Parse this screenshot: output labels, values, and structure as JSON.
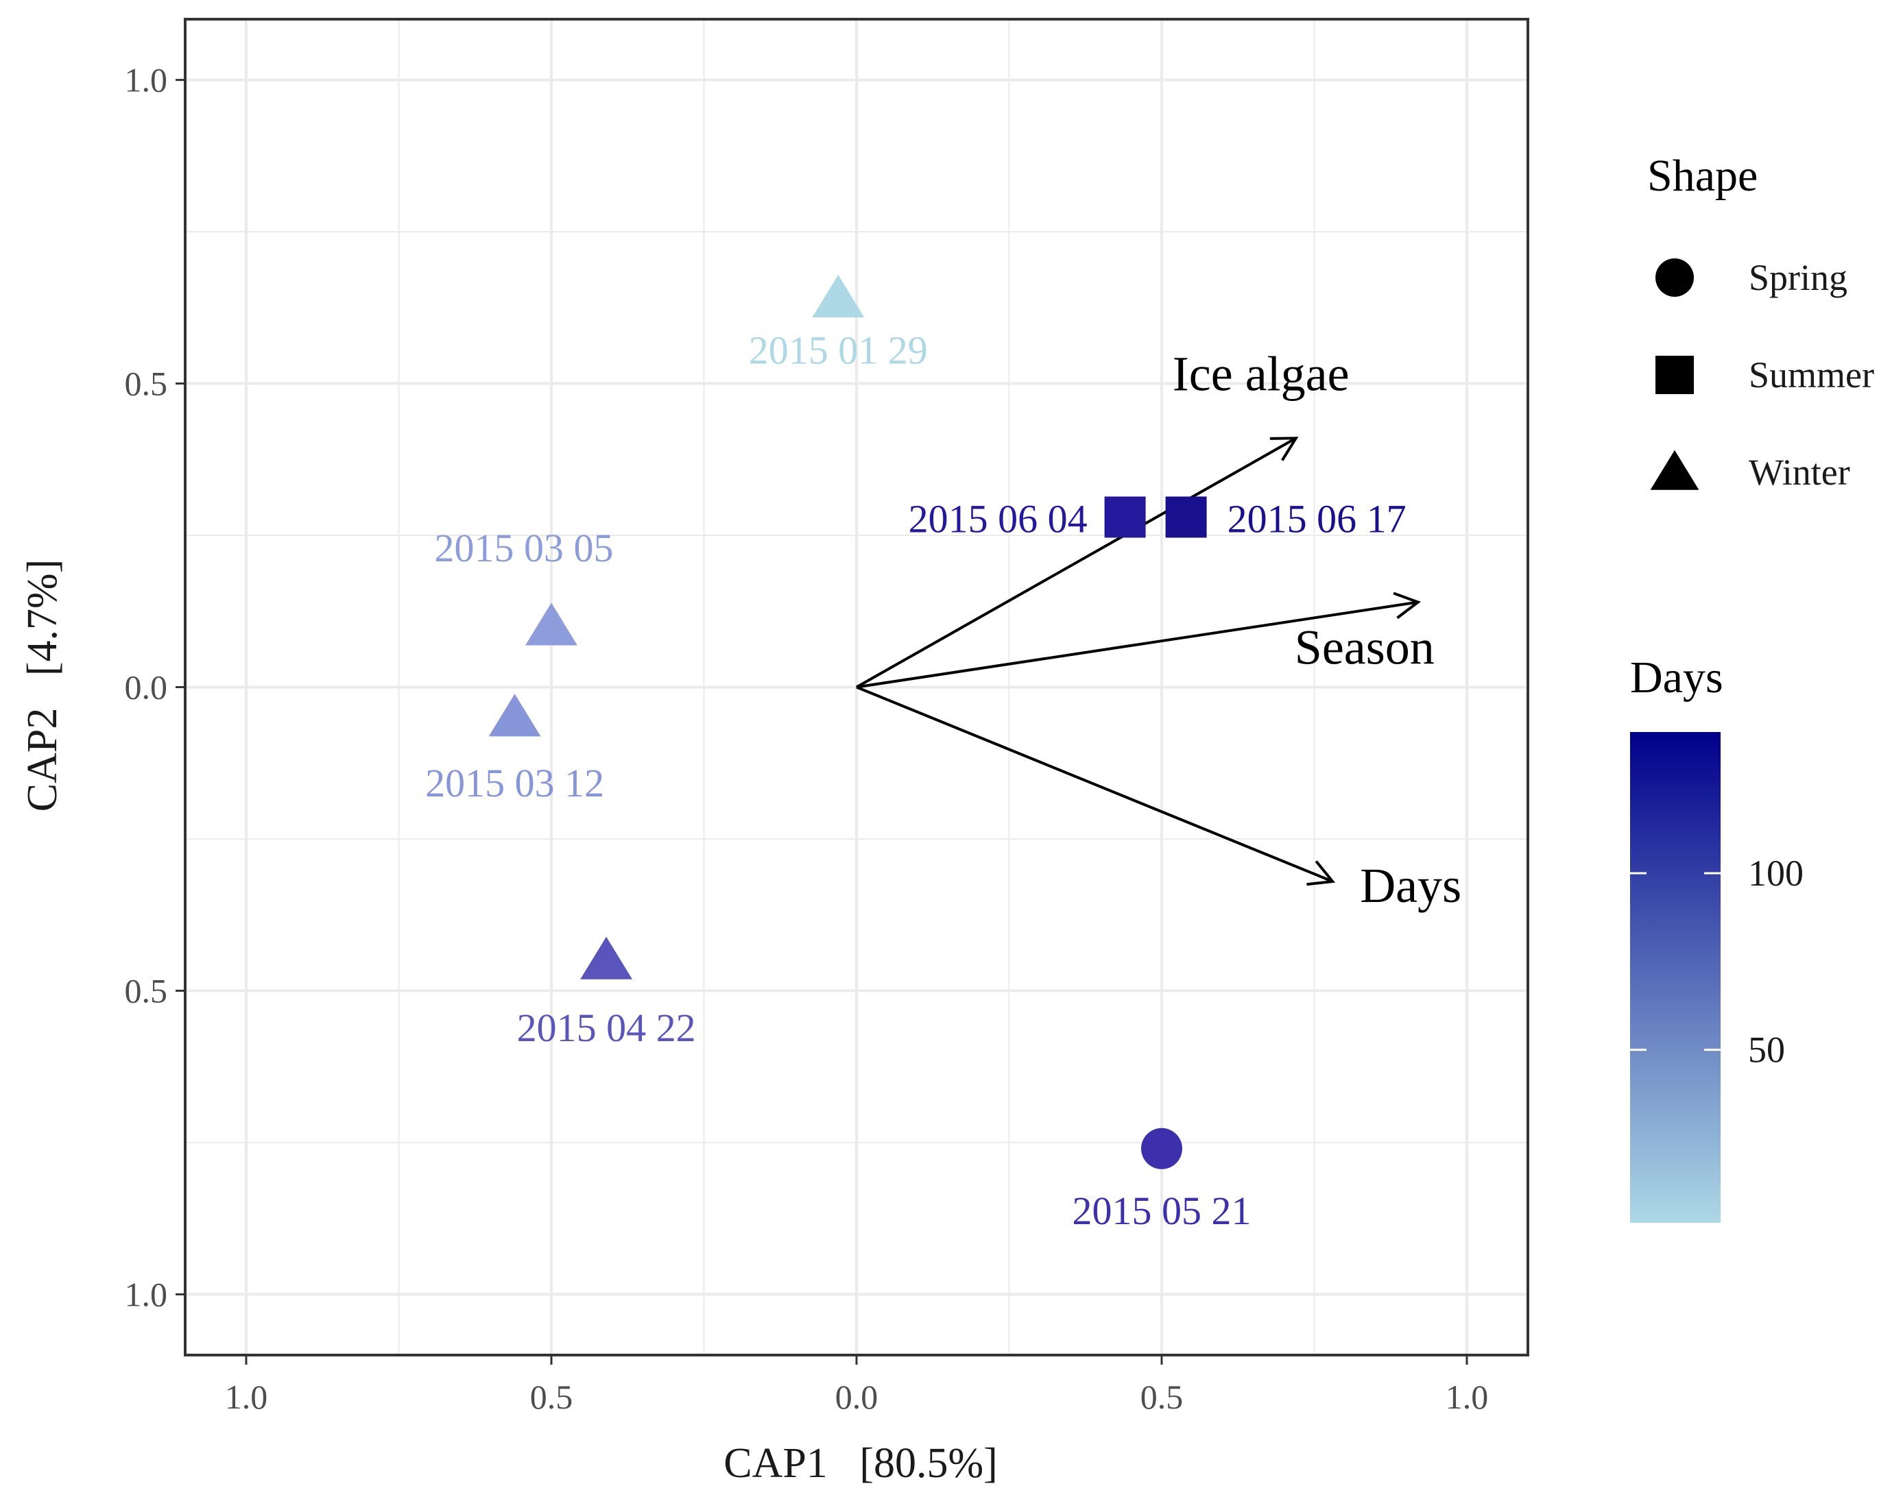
{
  "chart_data": {
    "type": "scatter",
    "xlabel": "CAP1   [80.5%]",
    "ylabel": "CAP2   [4.7%]",
    "xlim": [
      -1.1,
      1.1
    ],
    "ylim": [
      -1.1,
      1.1
    ],
    "x_ticks": [
      -1.0,
      -0.5,
      0.0,
      0.5,
      1.0
    ],
    "x_tick_labels": [
      "1.0",
      "0.5",
      "0.0",
      "0.5",
      "1.0"
    ],
    "y_ticks": [
      1.0,
      0.5,
      0.0,
      -0.5,
      -1.0
    ],
    "y_tick_labels": [
      "1.0",
      "0.5",
      "0.0",
      "0.5",
      "1.0"
    ],
    "grid": true,
    "points": [
      {
        "label": "2015  01  29",
        "x": -0.03,
        "y": 0.64,
        "shape": "Winter",
        "days": 1,
        "color": "#add8e6"
      },
      {
        "label": "2015  03  05",
        "x": -0.5,
        "y": 0.1,
        "shape": "Winter",
        "days": 36,
        "color": "#8d9ddc"
      },
      {
        "label": "2015  03  12",
        "x": -0.56,
        "y": -0.05,
        "shape": "Winter",
        "days": 43,
        "color": "#8796d8"
      },
      {
        "label": "2015  04  22",
        "x": -0.41,
        "y": -0.45,
        "shape": "Winter",
        "days": 84,
        "color": "#5a55bd"
      },
      {
        "label": "2015  05  21",
        "x": 0.5,
        "y": -0.76,
        "shape": "Spring",
        "days": 113,
        "color": "#3d30ad"
      },
      {
        "label": "2015  06  04",
        "x": 0.44,
        "y": 0.28,
        "shape": "Summer",
        "days": 127,
        "color": "#24199c"
      },
      {
        "label": "2015  06  17",
        "x": 0.54,
        "y": 0.28,
        "shape": "Summer",
        "days": 140,
        "color": "#18108f"
      }
    ],
    "vectors": [
      {
        "name": "Ice algae",
        "x": 0.72,
        "y": 0.41
      },
      {
        "name": "Season",
        "x": 0.92,
        "y": 0.14
      },
      {
        "name": "Days",
        "x": 0.78,
        "y": -0.32
      }
    ],
    "legend_shape": {
      "title": "Shape",
      "items": [
        {
          "label": "Spring",
          "shape": "circle"
        },
        {
          "label": "Summer",
          "shape": "square"
        },
        {
          "label": "Winter",
          "shape": "triangle"
        }
      ]
    },
    "legend_color": {
      "title": "Days",
      "min": 1,
      "max": 140,
      "ticks": [
        50,
        100
      ],
      "tick_labels": [
        "50",
        "100"
      ],
      "low_color": "#add8e6",
      "high_color": "#00008b"
    }
  }
}
